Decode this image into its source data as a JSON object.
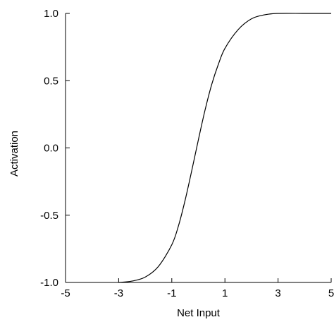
{
  "chart_data": {
    "type": "line",
    "title": "",
    "xlabel": "Net Input",
    "ylabel": "Activation",
    "xlim": [
      -5,
      5
    ],
    "ylim": [
      -1.0,
      1.0
    ],
    "grid": false,
    "x_ticks": [
      -5,
      -3,
      -1,
      1,
      3,
      5
    ],
    "x_tick_labels": [
      "-5",
      "-3",
      "-1",
      "1",
      "3",
      "5"
    ],
    "y_ticks": [
      -1.0,
      -0.5,
      0.0,
      0.5,
      1.0
    ],
    "y_tick_labels": [
      "-1.0",
      "-0.5",
      "0.0",
      "0.5",
      "1.0"
    ],
    "series": [
      {
        "x": [
          -3.0,
          -2.5,
          -2.0,
          -1.5,
          -1.0,
          -0.75,
          -0.5,
          -0.25,
          0.0,
          0.25,
          0.5,
          0.75,
          1.0,
          1.5,
          2.0,
          2.5,
          3.0,
          4.0,
          5.0
        ],
        "y": [
          -1.0,
          -0.99,
          -0.96,
          -0.88,
          -0.72,
          -0.58,
          -0.39,
          -0.17,
          0.06,
          0.28,
          0.47,
          0.62,
          0.74,
          0.88,
          0.96,
          0.99,
          1.0,
          1.0,
          1.0
        ],
        "color": "#000000"
      }
    ]
  }
}
